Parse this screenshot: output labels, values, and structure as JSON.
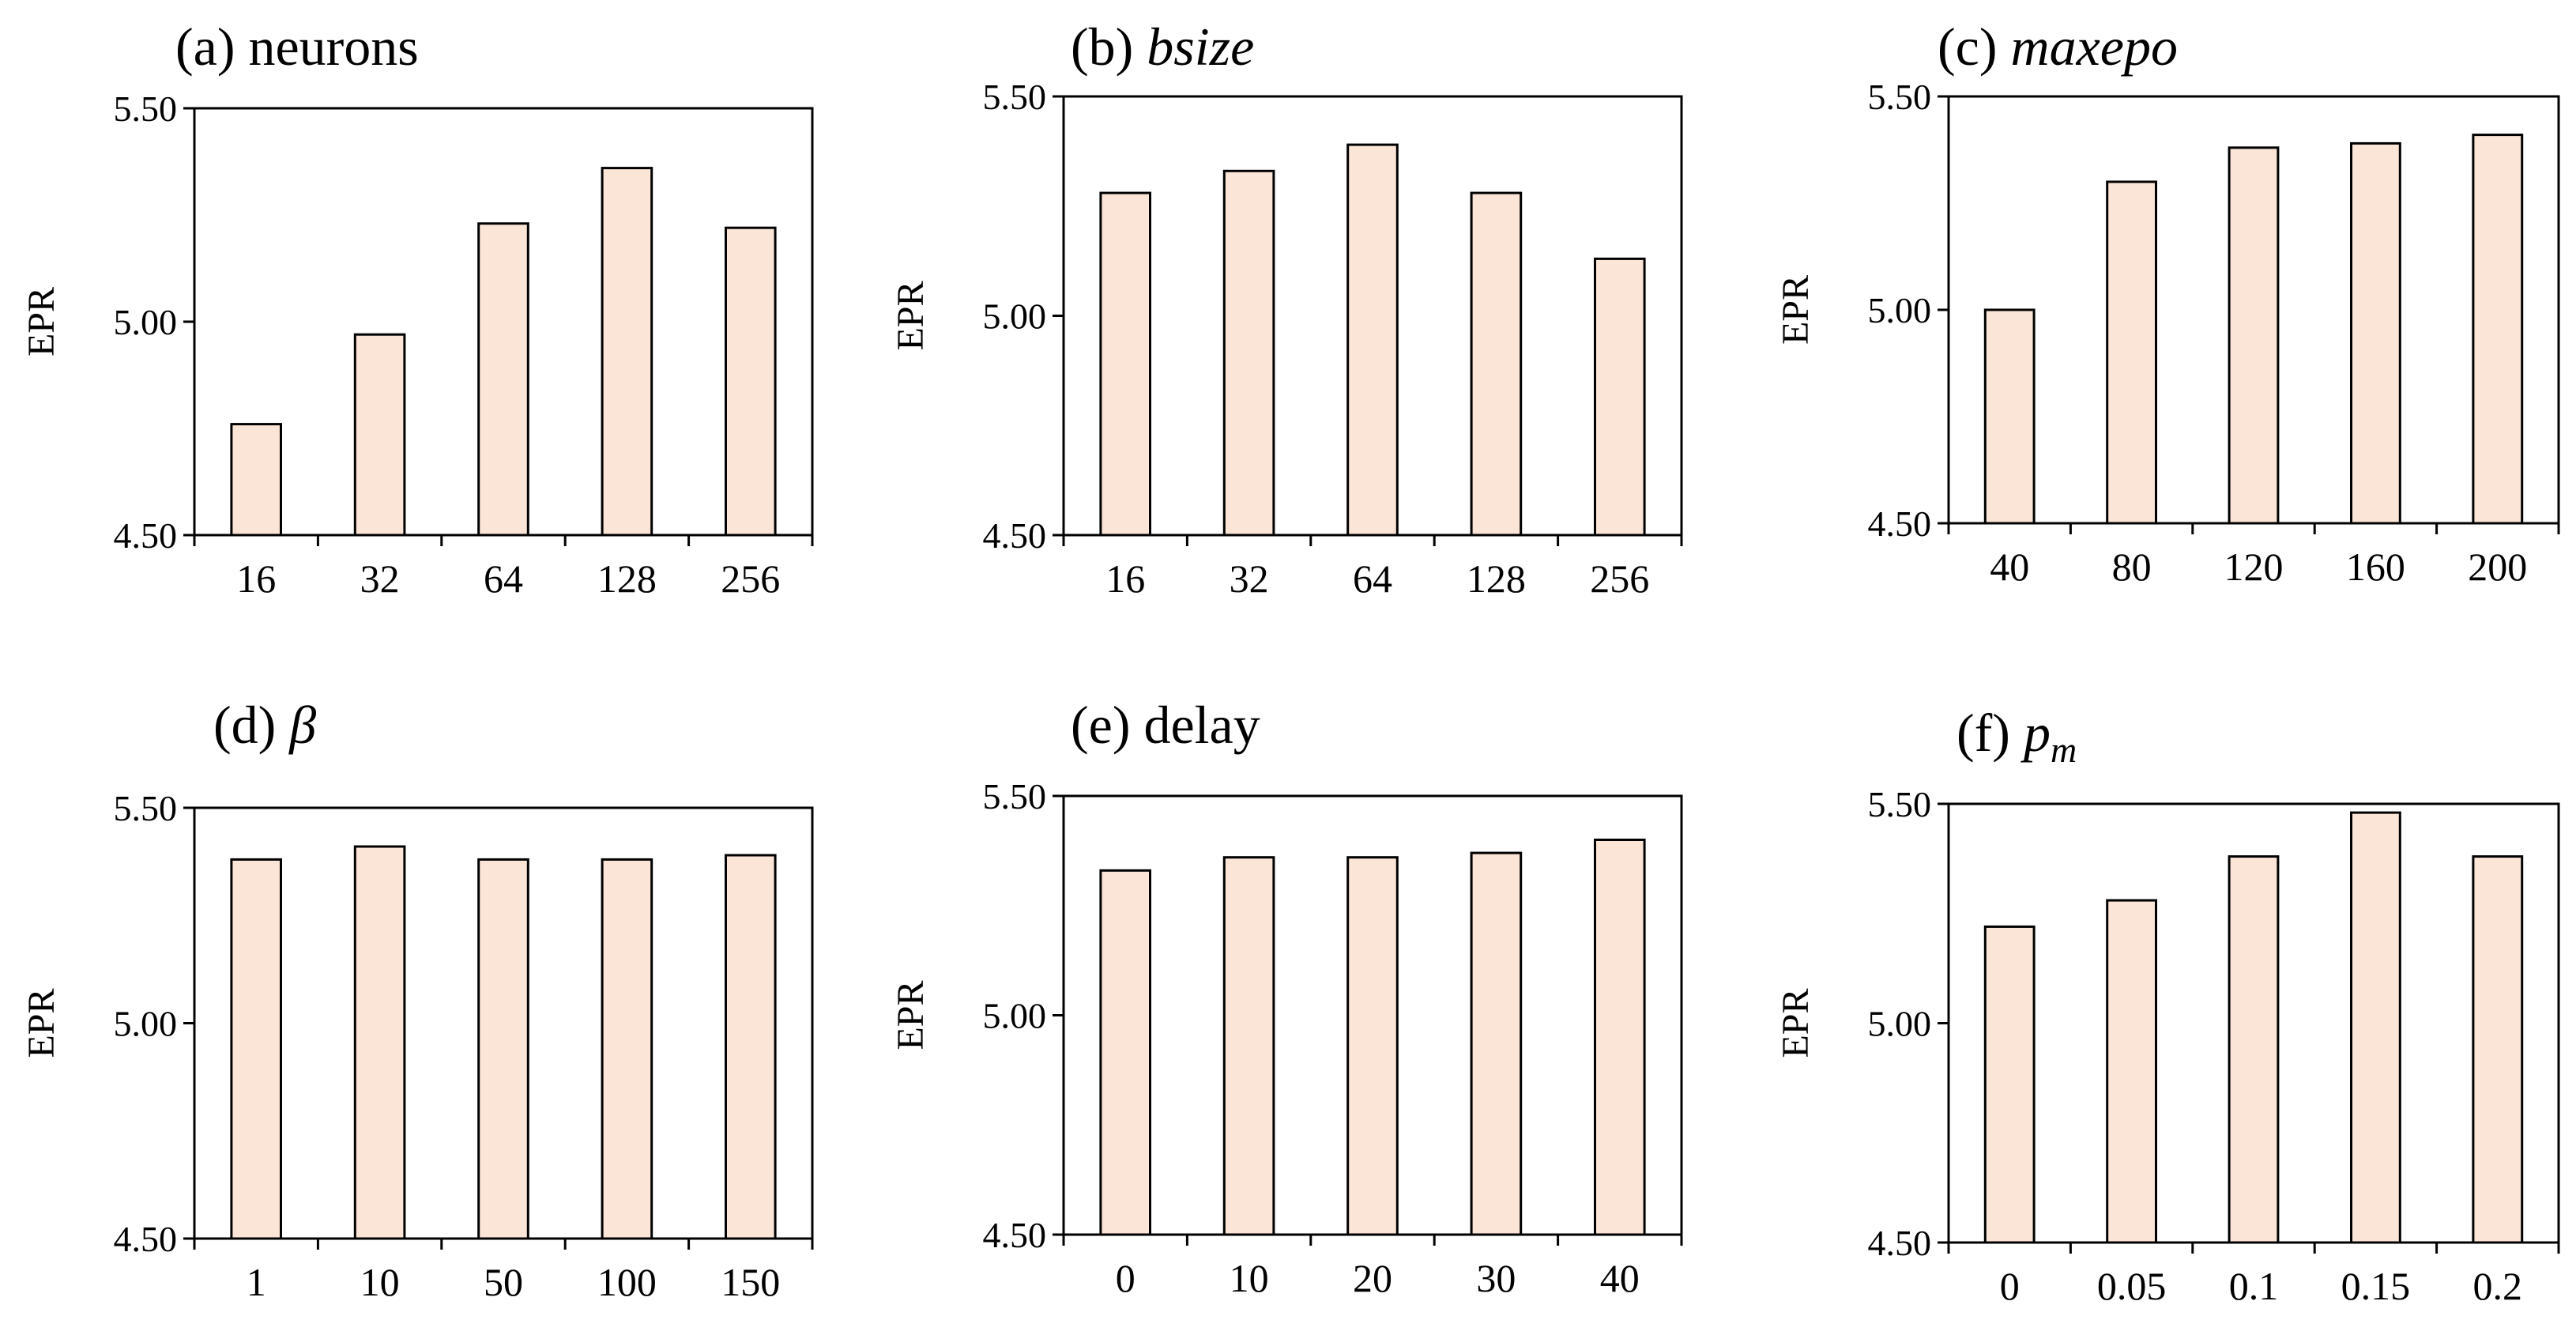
{
  "colors": {
    "bar_fill": "#fbe5d6",
    "bar_stroke": "#000000"
  },
  "chart_data": [
    {
      "type": "bar",
      "title_prefix": "(a) ",
      "title_math": "",
      "title_text": "neurons",
      "ylabel": "EPR",
      "ylim": [
        4.5,
        5.5
      ],
      "yticks": [
        "4.50",
        "5.00",
        "5.50"
      ],
      "categories": [
        "16",
        "32",
        "64",
        "128",
        "256"
      ],
      "values": [
        4.76,
        4.97,
        5.23,
        5.36,
        5.22
      ]
    },
    {
      "type": "bar",
      "title_prefix": "(b) ",
      "title_math": "bsize",
      "title_text": "",
      "ylabel": "EPR",
      "ylim": [
        4.5,
        5.5
      ],
      "yticks": [
        "4.50",
        "5.00",
        "5.50"
      ],
      "categories": [
        "16",
        "32",
        "64",
        "128",
        "256"
      ],
      "values": [
        5.28,
        5.33,
        5.39,
        5.28,
        5.13
      ]
    },
    {
      "type": "bar",
      "title_prefix": "(c) ",
      "title_math": "maxepo",
      "title_text": "",
      "ylabel": "EPR",
      "ylim": [
        4.5,
        5.5
      ],
      "yticks": [
        "4.50",
        "5.00",
        "5.50"
      ],
      "categories": [
        "40",
        "80",
        "120",
        "160",
        "200"
      ],
      "values": [
        5.0,
        5.3,
        5.38,
        5.39,
        5.41
      ]
    },
    {
      "type": "bar",
      "title_prefix": "(d) ",
      "title_math": "β",
      "title_text": "",
      "ylabel": "EPR",
      "ylim": [
        4.5,
        5.5
      ],
      "yticks": [
        "4.50",
        "5.00",
        "5.50"
      ],
      "categories": [
        "1",
        "10",
        "50",
        "100",
        "150"
      ],
      "values": [
        5.38,
        5.41,
        5.38,
        5.38,
        5.39
      ]
    },
    {
      "type": "bar",
      "title_prefix": "(e) ",
      "title_math": "",
      "title_text": "delay",
      "ylabel": "EPR",
      "ylim": [
        4.5,
        5.5
      ],
      "yticks": [
        "4.50",
        "5.00",
        "5.50"
      ],
      "categories": [
        "0",
        "10",
        "20",
        "30",
        "40"
      ],
      "values": [
        5.33,
        5.36,
        5.36,
        5.37,
        5.4
      ]
    },
    {
      "type": "bar",
      "title_prefix": "(f) ",
      "title_math": "p",
      "title_math_sub": "m",
      "title_text": "",
      "ylabel": "EPR",
      "ylim": [
        4.5,
        5.5
      ],
      "yticks": [
        "4.50",
        "5.00",
        "5.50"
      ],
      "categories": [
        "0",
        "0.05",
        "0.1",
        "0.15",
        "0.2"
      ],
      "values": [
        5.22,
        5.28,
        5.38,
        5.48,
        5.38
      ]
    }
  ]
}
